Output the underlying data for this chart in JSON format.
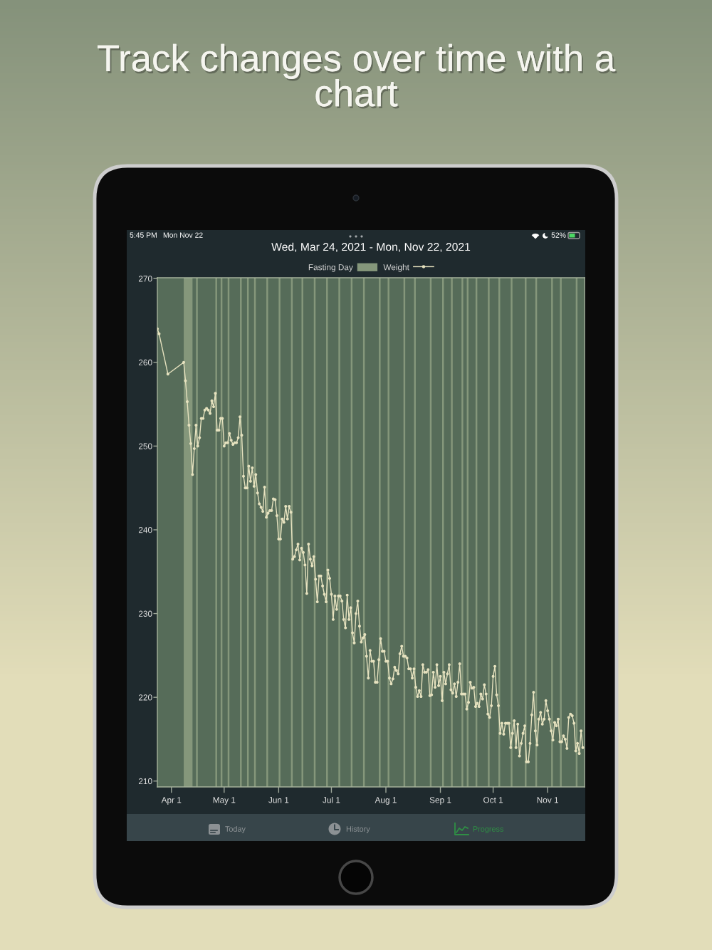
{
  "chart_data": {
    "type": "line",
    "title": "Track changes over time with a chart",
    "subtitle": "Wed, Mar 24, 2021 - Mon, Nov 22, 2021",
    "x": [
      "2021-03-24",
      "2021-03-25",
      "2021-03-30",
      "2021-04-08",
      "2021-04-09",
      "2021-04-10",
      "2021-04-11",
      "2021-04-12",
      "2021-04-13",
      "2021-04-14",
      "2021-04-15",
      "2021-04-16",
      "2021-04-17",
      "2021-04-18",
      "2021-04-19",
      "2021-04-20",
      "2021-04-21",
      "2021-04-22",
      "2021-04-23",
      "2021-04-24",
      "2021-04-25",
      "2021-04-26",
      "2021-04-27",
      "2021-04-28",
      "2021-04-29",
      "2021-04-30",
      "2021-05-01",
      "2021-05-02",
      "2021-05-03",
      "2021-05-04",
      "2021-05-05",
      "2021-05-06",
      "2021-05-07",
      "2021-05-08",
      "2021-05-09",
      "2021-05-10",
      "2021-05-11",
      "2021-05-12",
      "2021-05-13",
      "2021-05-14",
      "2021-05-15",
      "2021-05-16",
      "2021-05-17",
      "2021-05-18",
      "2021-05-19",
      "2021-05-20",
      "2021-05-21",
      "2021-05-22",
      "2021-05-23",
      "2021-05-24",
      "2021-05-25",
      "2021-05-26",
      "2021-05-27",
      "2021-05-28",
      "2021-05-29",
      "2021-05-30",
      "2021-05-31",
      "2021-06-01",
      "2021-06-02",
      "2021-06-03",
      "2021-06-04",
      "2021-06-05",
      "2021-06-06",
      "2021-06-07",
      "2021-06-08",
      "2021-06-09",
      "2021-06-10",
      "2021-06-11",
      "2021-06-12",
      "2021-06-13",
      "2021-06-14",
      "2021-06-15",
      "2021-06-16",
      "2021-06-17",
      "2021-06-18",
      "2021-06-19",
      "2021-06-20",
      "2021-06-21",
      "2021-06-22",
      "2021-06-23",
      "2021-06-24",
      "2021-06-25",
      "2021-06-26",
      "2021-06-27",
      "2021-06-28",
      "2021-06-29",
      "2021-06-30",
      "2021-07-01",
      "2021-07-02",
      "2021-07-03",
      "2021-07-04",
      "2021-07-05",
      "2021-07-06",
      "2021-07-07",
      "2021-07-08",
      "2021-07-09",
      "2021-07-10",
      "2021-07-11",
      "2021-07-12",
      "2021-07-13",
      "2021-07-14",
      "2021-07-15",
      "2021-07-16",
      "2021-07-17",
      "2021-07-18",
      "2021-07-19",
      "2021-07-20",
      "2021-07-21",
      "2021-07-22",
      "2021-07-23",
      "2021-07-24",
      "2021-07-25",
      "2021-07-26",
      "2021-07-27",
      "2021-07-28",
      "2021-07-29",
      "2021-07-30",
      "2021-07-31",
      "2021-08-01",
      "2021-08-02",
      "2021-08-03",
      "2021-08-04",
      "2021-08-05",
      "2021-08-06",
      "2021-08-07",
      "2021-08-08",
      "2021-08-09",
      "2021-08-10",
      "2021-08-11",
      "2021-08-12",
      "2021-08-13",
      "2021-08-14",
      "2021-08-15",
      "2021-08-16",
      "2021-08-17",
      "2021-08-18",
      "2021-08-19",
      "2021-08-20",
      "2021-08-21",
      "2021-08-22",
      "2021-08-23",
      "2021-08-24",
      "2021-08-25",
      "2021-08-26",
      "2021-08-27",
      "2021-08-28",
      "2021-08-29",
      "2021-08-30",
      "2021-08-31",
      "2021-09-01",
      "2021-09-02",
      "2021-09-03",
      "2021-09-04",
      "2021-09-05",
      "2021-09-06",
      "2021-09-07",
      "2021-09-08",
      "2021-09-09",
      "2021-09-10",
      "2021-09-11",
      "2021-09-12",
      "2021-09-13",
      "2021-09-14",
      "2021-09-15",
      "2021-09-16",
      "2021-09-17",
      "2021-09-18",
      "2021-09-19",
      "2021-09-20",
      "2021-09-21",
      "2021-09-22",
      "2021-09-23",
      "2021-09-24",
      "2021-09-25",
      "2021-09-26",
      "2021-09-27",
      "2021-09-28",
      "2021-09-29",
      "2021-09-30",
      "2021-10-01",
      "2021-10-02",
      "2021-10-03",
      "2021-10-04",
      "2021-10-05",
      "2021-10-06",
      "2021-10-07",
      "2021-10-08",
      "2021-10-09",
      "2021-10-10",
      "2021-10-11",
      "2021-10-12",
      "2021-10-13",
      "2021-10-14",
      "2021-10-15",
      "2021-10-16",
      "2021-10-17",
      "2021-10-18",
      "2021-10-19",
      "2021-10-20",
      "2021-10-21",
      "2021-10-22",
      "2021-10-23",
      "2021-10-24",
      "2021-10-25",
      "2021-10-26",
      "2021-10-27",
      "2021-10-28",
      "2021-10-29",
      "2021-10-30",
      "2021-10-31",
      "2021-11-01",
      "2021-11-02",
      "2021-11-03",
      "2021-11-04",
      "2021-11-05",
      "2021-11-06",
      "2021-11-07",
      "2021-11-08",
      "2021-11-09",
      "2021-11-10",
      "2021-11-11",
      "2021-11-12",
      "2021-11-13",
      "2021-11-14",
      "2021-11-15",
      "2021-11-16",
      "2021-11-17",
      "2021-11-18",
      "2021-11-19",
      "2021-11-20",
      "2021-11-21"
    ],
    "series": [
      {
        "name": "Weight",
        "color": "#e6e2bf",
        "values": [
          264.0,
          263.4,
          258.6,
          260.0,
          257.8,
          255.3,
          252.5,
          250.3,
          246.6,
          249.7,
          252.5,
          250.0,
          251.0,
          253.3,
          253.3,
          254.3,
          254.5,
          254.3,
          253.9,
          255.4,
          254.7,
          256.3,
          251.9,
          251.9,
          253.3,
          253.3,
          250.0,
          250.4,
          250.4,
          251.5,
          250.7,
          250.2,
          250.4,
          250.4,
          251.0,
          253.5,
          251.3,
          246.4,
          245.0,
          245.0,
          247.6,
          245.8,
          247.4,
          245.2,
          246.6,
          244.4,
          243.1,
          242.7,
          242.2,
          245.1,
          241.5,
          242.0,
          242.3,
          242.3,
          243.7,
          243.6,
          241.7,
          238.9,
          238.9,
          241.3,
          240.9,
          242.8,
          241.3,
          242.8,
          242.1,
          236.5,
          236.8,
          237.6,
          238.3,
          236.4,
          237.8,
          237.3,
          235.8,
          232.4,
          238.3,
          236.5,
          235.7,
          236.8,
          234.1,
          231.4,
          234.5,
          234.5,
          233.3,
          232.3,
          231.4,
          235.2,
          234.2,
          232.3,
          229.3,
          232.1,
          230.5,
          232.1,
          232.1,
          231.5,
          229.3,
          228.3,
          232.2,
          229.3,
          230.7,
          227.7,
          226.5,
          230.0,
          231.5,
          228.5,
          226.6,
          227.1,
          227.5,
          224.9,
          222.3,
          225.6,
          224.3,
          224.3,
          221.8,
          221.8,
          224.5,
          227.0,
          225.5,
          225.5,
          224.3,
          224.3,
          222.3,
          221.6,
          222.2,
          223.6,
          223.2,
          222.8,
          225.2,
          226.1,
          224.9,
          224.9,
          224.7,
          223.4,
          223.4,
          222.3,
          223.4,
          221.2,
          220.1,
          220.8,
          220.1,
          223.9,
          223.0,
          223.0,
          223.3,
          220.2,
          220.3,
          223.0,
          221.2,
          223.9,
          221.4,
          222.5,
          219.6,
          223.0,
          221.6,
          222.8,
          223.9,
          220.9,
          220.5,
          221.6,
          220.1,
          221.8,
          224.0,
          220.4,
          220.4,
          220.4,
          218.6,
          219.4,
          221.8,
          221.1,
          221.2,
          218.9,
          219.3,
          218.9,
          220.4,
          219.8,
          221.5,
          220.4,
          218.0,
          217.6,
          219.0,
          222.5,
          223.7,
          220.3,
          219.0,
          215.7,
          216.9,
          215.6,
          216.9,
          216.9,
          216.9,
          214.0,
          215.7,
          217.2,
          214.0,
          216.8,
          213.0,
          214.5,
          215.7,
          216.6,
          212.3,
          212.3,
          214.5,
          217.9,
          220.6,
          216.0,
          214.3,
          217.4,
          218.2,
          216.8,
          217.4,
          219.6,
          218.4,
          217.4,
          216.0,
          214.9,
          217.0,
          216.6,
          217.4,
          214.7,
          214.7,
          215.4,
          215.0,
          213.9,
          217.6,
          218.0,
          217.8,
          216.9,
          213.6,
          214.5,
          213.3,
          216.0,
          214.0
        ]
      }
    ],
    "xlim": [
      "2021-03-24",
      "2021-11-22"
    ],
    "xticks": [
      {
        "value": "2021-04-01",
        "label": "Apr 1"
      },
      {
        "value": "2021-05-01",
        "label": "May 1"
      },
      {
        "value": "2021-06-01",
        "label": "Jun 1"
      },
      {
        "value": "2021-07-01",
        "label": "Jul 1"
      },
      {
        "value": "2021-08-01",
        "label": "Aug 1"
      },
      {
        "value": "2021-09-01",
        "label": "Sep 1"
      },
      {
        "value": "2021-10-01",
        "label": "Oct 1"
      },
      {
        "value": "2021-11-01",
        "label": "Nov 1"
      }
    ],
    "ylim": [
      209.3,
      270.1
    ],
    "yticks": [
      210,
      220,
      230,
      240,
      250,
      260,
      270
    ],
    "bands": [
      {
        "axis": "x",
        "from": "2021-04-08",
        "to": "2021-04-13",
        "label": "Fasting Day",
        "color": "#85977b"
      },
      {
        "axis": "x",
        "from": "2021-04-15",
        "to": "2021-04-16",
        "color": "#85977b"
      },
      {
        "axis": "x",
        "from": "2021-04-26",
        "to": "2021-04-27",
        "color": "#85977b"
      },
      {
        "axis": "x",
        "from": "2021-04-29",
        "to": "2021-04-30",
        "color": "#85977b"
      },
      {
        "axis": "x",
        "from": "2021-05-03",
        "to": "2021-05-04",
        "color": "#85977b"
      },
      {
        "axis": "x",
        "from": "2021-05-10",
        "to": "2021-05-11",
        "color": "#85977b"
      },
      {
        "axis": "x",
        "from": "2021-05-14",
        "to": "2021-05-15",
        "color": "#85977b"
      },
      {
        "axis": "x",
        "from": "2021-05-18",
        "to": "2021-05-19",
        "color": "#85977b"
      },
      {
        "axis": "x",
        "from": "2021-05-25",
        "to": "2021-05-26",
        "color": "#85977b"
      },
      {
        "axis": "x",
        "from": "2021-06-01",
        "to": "2021-06-02",
        "color": "#85977b"
      },
      {
        "axis": "x",
        "from": "2021-06-08",
        "to": "2021-06-09",
        "color": "#85977b"
      },
      {
        "axis": "x",
        "from": "2021-06-14",
        "to": "2021-06-15",
        "color": "#85977b"
      },
      {
        "axis": "x",
        "from": "2021-06-21",
        "to": "2021-06-22",
        "color": "#85977b"
      },
      {
        "axis": "x",
        "from": "2021-06-28",
        "to": "2021-06-29",
        "color": "#85977b"
      },
      {
        "axis": "x",
        "from": "2021-07-05",
        "to": "2021-07-06",
        "color": "#85977b"
      },
      {
        "axis": "x",
        "from": "2021-07-12",
        "to": "2021-07-13",
        "color": "#85977b"
      },
      {
        "axis": "x",
        "from": "2021-07-19",
        "to": "2021-07-20",
        "color": "#85977b"
      },
      {
        "axis": "x",
        "from": "2021-07-28",
        "to": "2021-07-29",
        "color": "#85977b"
      },
      {
        "axis": "x",
        "from": "2021-08-02",
        "to": "2021-08-03",
        "color": "#85977b"
      },
      {
        "axis": "x",
        "from": "2021-08-11",
        "to": "2021-08-12",
        "color": "#85977b"
      },
      {
        "axis": "x",
        "from": "2021-08-17",
        "to": "2021-08-18",
        "color": "#85977b"
      },
      {
        "axis": "x",
        "from": "2021-08-26",
        "to": "2021-08-27",
        "color": "#85977b"
      },
      {
        "axis": "x",
        "from": "2021-09-02",
        "to": "2021-09-03",
        "color": "#85977b"
      },
      {
        "axis": "x",
        "from": "2021-09-07",
        "to": "2021-09-08",
        "color": "#85977b"
      },
      {
        "axis": "x",
        "from": "2021-09-13",
        "to": "2021-09-14",
        "color": "#85977b"
      },
      {
        "axis": "x",
        "from": "2021-09-16",
        "to": "2021-09-17",
        "color": "#85977b"
      },
      {
        "axis": "x",
        "from": "2021-09-21",
        "to": "2021-09-22",
        "color": "#85977b"
      },
      {
        "axis": "x",
        "from": "2021-09-28",
        "to": "2021-09-29",
        "color": "#85977b"
      },
      {
        "axis": "x",
        "from": "2021-10-04",
        "to": "2021-10-05",
        "color": "#85977b"
      },
      {
        "axis": "x",
        "from": "2021-10-11",
        "to": "2021-10-12",
        "color": "#85977b"
      },
      {
        "axis": "x",
        "from": "2021-10-19",
        "to": "2021-10-20",
        "color": "#85977b"
      },
      {
        "axis": "x",
        "from": "2021-10-25",
        "to": "2021-10-26",
        "color": "#85977b"
      },
      {
        "axis": "x",
        "from": "2021-11-03",
        "to": "2021-11-04",
        "color": "#85977b"
      },
      {
        "axis": "x",
        "from": "2021-11-08",
        "to": "2021-11-09",
        "color": "#85977b"
      },
      {
        "axis": "x",
        "from": "2021-11-17",
        "to": "2021-11-18",
        "color": "#85977b"
      }
    ],
    "legend": "top",
    "marker": "circle",
    "line_style": "solid",
    "annotations": [
      "5:45 PM",
      "Mon Nov 22",
      "52%",
      "Today",
      "History",
      "Progress"
    ]
  }
}
